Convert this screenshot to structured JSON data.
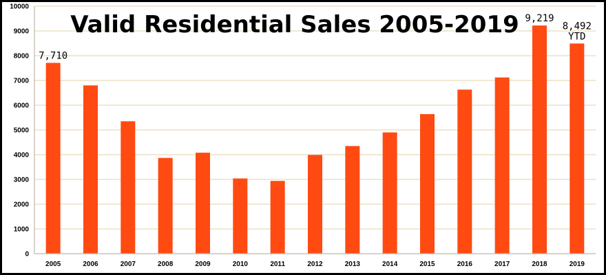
{
  "chart_data": {
    "type": "bar",
    "title": "Valid Residential Sales 2005-2019",
    "xlabel": "",
    "ylabel": "",
    "categories": [
      "2005",
      "2006",
      "2007",
      "2008",
      "2009",
      "2010",
      "2011",
      "2012",
      "2013",
      "2014",
      "2015",
      "2016",
      "2017",
      "2018",
      "2019"
    ],
    "values": [
      7710,
      6800,
      5350,
      3870,
      4080,
      3040,
      2940,
      3990,
      4350,
      4900,
      5640,
      6630,
      7120,
      9219,
      8492
    ],
    "ylim": [
      0,
      10000
    ],
    "yticks": [
      "0",
      "1000",
      "2000",
      "3000",
      "4000",
      "5000",
      "6000",
      "7000",
      "8000",
      "9000",
      "10000"
    ],
    "data_labels": [
      {
        "category": "2005",
        "lines": [
          "7,710"
        ]
      },
      {
        "category": "2018",
        "lines": [
          "9,219"
        ]
      },
      {
        "category": "2019",
        "lines": [
          "8,492",
          "YTD"
        ]
      }
    ],
    "grid": true,
    "legend": "none",
    "colors": {
      "bar": "#FF4A12",
      "grid": "#E6D9B8",
      "axis": "#BDB7A6",
      "text": "#000000",
      "background": "#FFFFFF",
      "frame": "#000000"
    }
  }
}
